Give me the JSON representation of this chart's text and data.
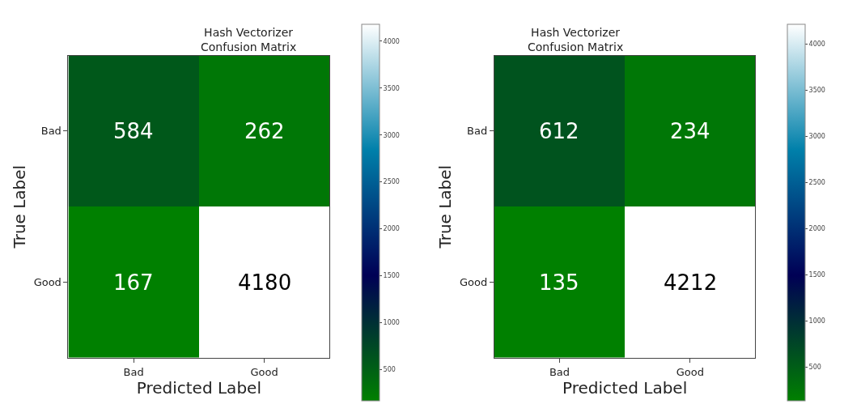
{
  "chart_data": [
    {
      "type": "heatmap",
      "title": "Hash Vectorizer\nConfusion Matrix",
      "xlabel": "Predicted Label",
      "ylabel": "True Label",
      "categories": [
        "Bad",
        "Good"
      ],
      "y_categories": [
        "Bad",
        "Good"
      ],
      "cells": [
        [
          584,
          262
        ],
        [
          167,
          4180
        ]
      ],
      "clim": [
        167,
        4180
      ],
      "cticks": [
        500,
        1000,
        1500,
        2000,
        2500,
        3000,
        3500,
        4000
      ],
      "data_labels": true
    },
    {
      "type": "heatmap",
      "title": "Hash Vectorizer\nConfusion Matrix",
      "xlabel": "Predicted Label",
      "ylabel": "True Label",
      "categories": [
        "Bad",
        "Good"
      ],
      "y_categories": [
        "Bad",
        "Good"
      ],
      "cells": [
        [
          612,
          234
        ],
        [
          135,
          4212
        ]
      ],
      "clim": [
        135,
        4212
      ],
      "cticks": [
        500,
        1000,
        1500,
        2000,
        2500,
        3000,
        3500,
        4000
      ],
      "data_labels": true
    }
  ]
}
